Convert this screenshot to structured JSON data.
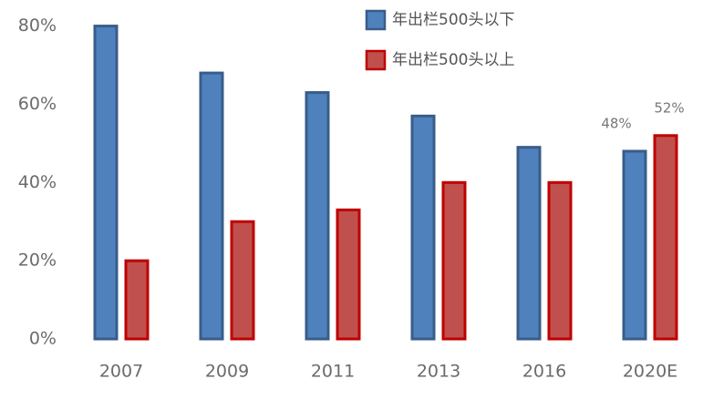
{
  "chart_data": {
    "type": "bar",
    "categories": [
      "2007",
      "2009",
      "2011",
      "2013",
      "2016",
      "2020E"
    ],
    "series": [
      {
        "name": "年出栏500头以下",
        "color": "#4f81bd",
        "stroke": "#385d8a",
        "values": [
          80,
          68,
          63,
          57,
          49,
          48
        ],
        "value_labels": [
          null,
          null,
          null,
          null,
          null,
          "48%"
        ]
      },
      {
        "name": "年出栏500头以上",
        "color": "#c0504d",
        "stroke": "#c00000",
        "values": [
          20,
          30,
          33,
          40,
          40,
          52
        ],
        "value_labels": [
          null,
          null,
          null,
          null,
          null,
          "52%"
        ]
      }
    ],
    "ylim": [
      0,
      82
    ],
    "yticks": [
      {
        "value": 0,
        "label": "0%"
      },
      {
        "value": 20,
        "label": "20%"
      },
      {
        "value": 40,
        "label": "40%"
      },
      {
        "value": 60,
        "label": "60%"
      },
      {
        "value": 80,
        "label": "80%"
      }
    ],
    "grid": false,
    "legend": "top"
  }
}
